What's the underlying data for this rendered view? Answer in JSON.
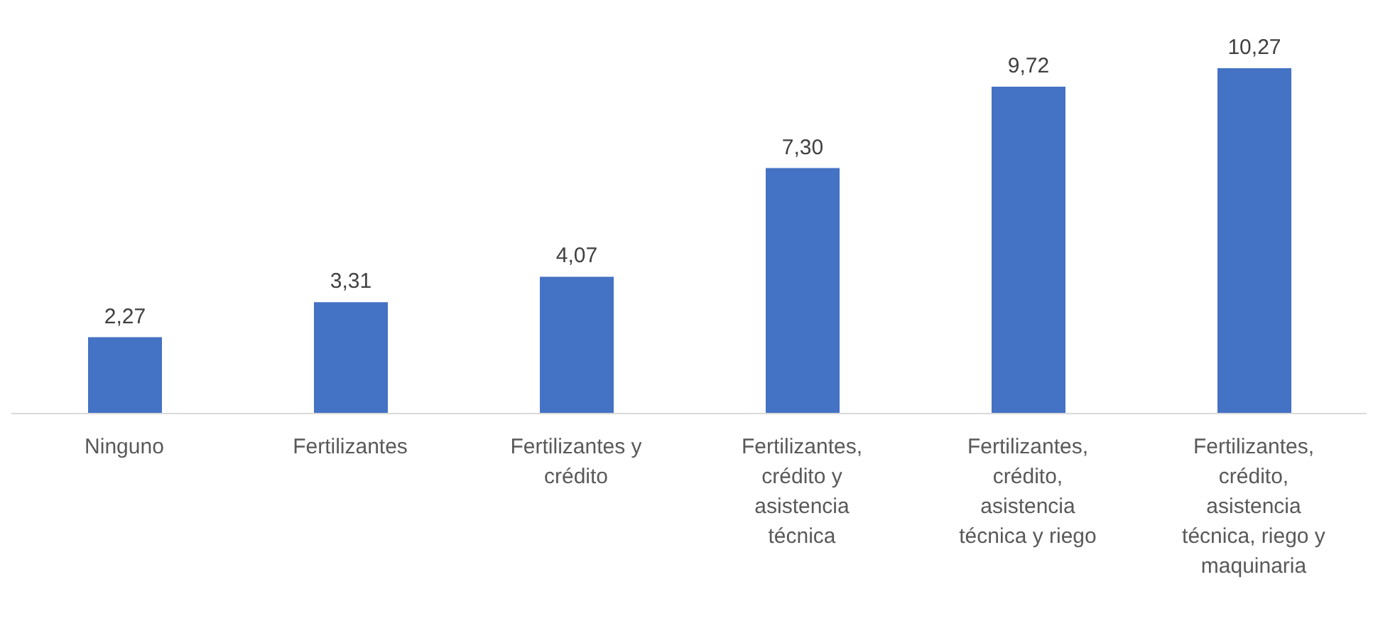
{
  "chart_data": {
    "type": "bar",
    "categories": [
      "Ninguno",
      "Fertilizantes",
      "Fertilizantes y crédito",
      "Fertilizantes, crédito y asistencia técnica",
      "Fertilizantes, crédito, asistencia técnica y riego",
      "Fertilizantes, crédito, asistencia técnica, riego y maquinaria"
    ],
    "values": [
      2.27,
      3.31,
      4.07,
      7.3,
      9.72,
      10.27
    ],
    "value_labels": [
      "2,27",
      "3,31",
      "4,07",
      "7,30",
      "9,72",
      "10,27"
    ],
    "color": "#4472c4"
  }
}
